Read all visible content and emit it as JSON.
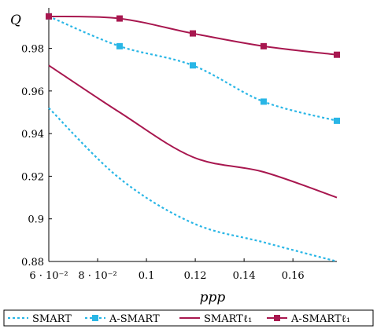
{
  "chart_data": {
    "type": "line",
    "xlabel": "ppp",
    "ylabel": "Q",
    "xlim": [
      0.06,
      0.178
    ],
    "ylim": [
      0.88,
      0.999
    ],
    "xticks": [
      {
        "value": 0.06,
        "label": "6 · 10⁻²"
      },
      {
        "value": 0.08,
        "label": "8 · 10⁻²"
      },
      {
        "value": 0.1,
        "label": "0.1"
      },
      {
        "value": 0.12,
        "label": "0.12"
      },
      {
        "value": 0.14,
        "label": "0.14"
      },
      {
        "value": 0.16,
        "label": "0.16"
      }
    ],
    "yticks": [
      {
        "value": 0.88,
        "label": "0.88"
      },
      {
        "value": 0.9,
        "label": "0.9"
      },
      {
        "value": 0.92,
        "label": "0.92"
      },
      {
        "value": 0.94,
        "label": "0.94"
      },
      {
        "value": 0.96,
        "label": "0.96"
      },
      {
        "value": 0.98,
        "label": "0.98"
      }
    ],
    "x": [
      0.06,
      0.089,
      0.119,
      0.148,
      0.178
    ],
    "grid": false,
    "legend_position": "bottom",
    "series": [
      {
        "name": "SMART",
        "values": [
          0.952,
          0.919,
          0.898,
          0.889,
          0.88
        ],
        "color": "#29b6e6",
        "style": "dotted",
        "marker": "none"
      },
      {
        "name": "A-SMART",
        "values": [
          0.995,
          0.981,
          0.972,
          0.955,
          0.946
        ],
        "color": "#29b6e6",
        "style": "dotted",
        "marker": "square"
      },
      {
        "name": "SMARTℓ₁",
        "values": [
          0.972,
          0.95,
          0.929,
          0.922,
          0.91
        ],
        "color": "#a8174f",
        "style": "solid",
        "marker": "none"
      },
      {
        "name": "A-SMARTℓ₁",
        "values": [
          0.995,
          0.994,
          0.987,
          0.981,
          0.977
        ],
        "color": "#a8174f",
        "style": "solid",
        "marker": "square"
      }
    ]
  }
}
